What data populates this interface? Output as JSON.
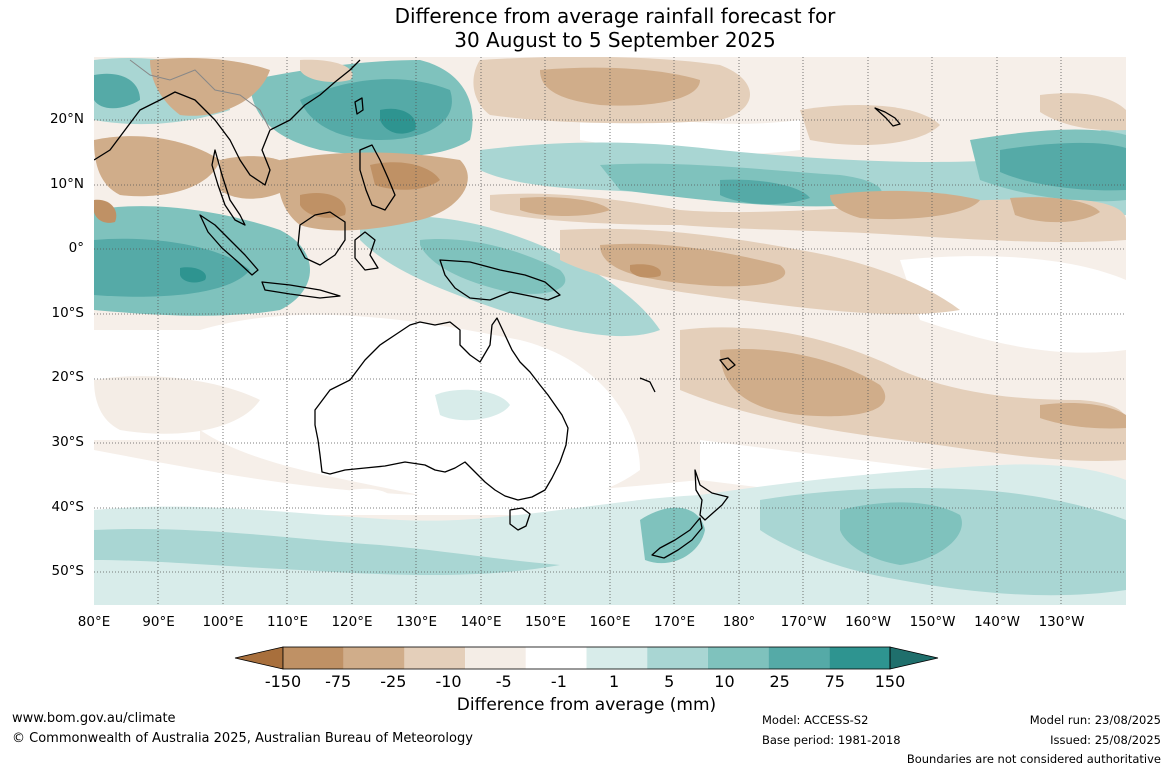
{
  "title_line1": "Difference from average rainfall forecast for",
  "title_line2": "30 August to 5 September 2025",
  "lon_labels": [
    "80°E",
    "90°E",
    "100°E",
    "110°E",
    "120°E",
    "130°E",
    "140°E",
    "150°E",
    "160°E",
    "170°E",
    "180°",
    "170°W",
    "160°W",
    "150°W",
    "140°W",
    "130°W"
  ],
  "lat_labels": [
    "20°N",
    "10°N",
    "0°",
    "10°S",
    "20°S",
    "30°S",
    "40°S",
    "50°S"
  ],
  "colorbar": {
    "ticks": [
      "-150",
      "-75",
      "-25",
      "-10",
      "-5",
      "-1",
      "1",
      "5",
      "10",
      "25",
      "75",
      "150"
    ],
    "colors": [
      "#a86f3c",
      "#bf9165",
      "#d0ad8a",
      "#e4cfba",
      "#f4ede6",
      "#ffffff",
      "#d8ecea",
      "#a9d6d3",
      "#7fc2bd",
      "#55aaa7",
      "#2e9490",
      "#1f6f6c"
    ],
    "label": "Difference from average (mm)"
  },
  "footer": {
    "website": "www.bom.gov.au/climate",
    "copyright": "© Commonwealth of Australia 2025, Australian Bureau of Meteorology",
    "model": "Model: ACCESS-S2",
    "base_period": "Base period: 1981-2018",
    "model_run": "Model run: 23/08/2025",
    "issued": "Issued: 25/08/2025",
    "disclaimer": "Boundaries are not considered authoritative"
  }
}
